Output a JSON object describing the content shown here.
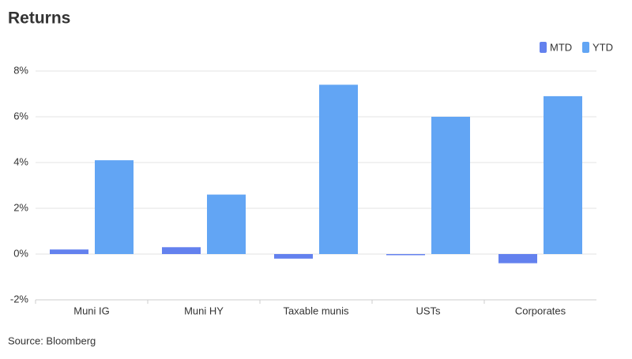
{
  "chart_data": {
    "type": "bar",
    "title": "Returns",
    "source": "Source: Bloomberg",
    "categories": [
      "Muni IG",
      "Muni HY",
      "Taxable munis",
      "USTs",
      "Corporates"
    ],
    "series": [
      {
        "name": "MTD",
        "color": "#6381ee",
        "values": [
          0.2,
          0.3,
          -0.2,
          -0.05,
          -0.4
        ]
      },
      {
        "name": "YTD",
        "color": "#62a5f4",
        "values": [
          4.1,
          2.6,
          7.4,
          6.0,
          6.9
        ]
      }
    ],
    "ylim": [
      -2,
      8
    ],
    "yticks": [
      {
        "value": -2,
        "label": "-2%"
      },
      {
        "value": 0,
        "label": "0%"
      },
      {
        "value": 2,
        "label": "2%"
      },
      {
        "value": 4,
        "label": "4%"
      },
      {
        "value": 6,
        "label": "6%"
      },
      {
        "value": 8,
        "label": "8%"
      }
    ],
    "grid": true,
    "legend": "top-right"
  }
}
